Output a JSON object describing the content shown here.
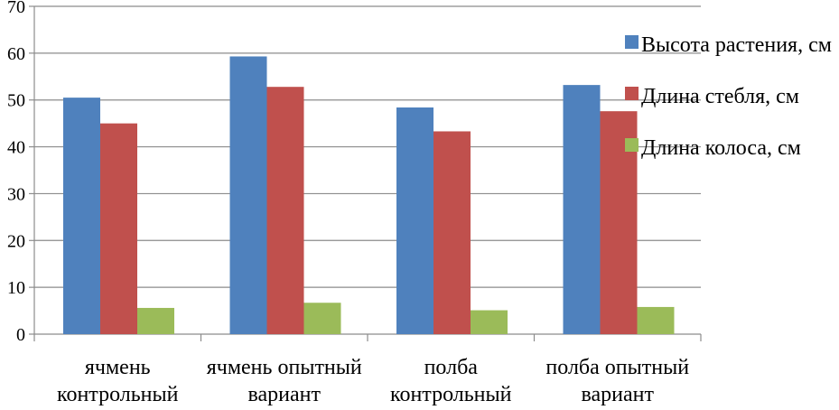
{
  "chart_data": {
    "type": "bar",
    "title": "",
    "xlabel": "",
    "ylabel": "",
    "ylim": [
      0,
      70
    ],
    "yticks": [
      0,
      10,
      20,
      30,
      40,
      50,
      60,
      70
    ],
    "grid": true,
    "legend_position": "right",
    "categories": [
      [
        "ячмень",
        "контрольный"
      ],
      [
        "ячмень опытный",
        "вариант"
      ],
      [
        "полба",
        "контрольный"
      ],
      [
        "полба опытный",
        "вариант"
      ]
    ],
    "series": [
      {
        "name": "Высота растения, см",
        "color": "#4F81BD",
        "values": [
          50.5,
          59.3,
          48.4,
          53.2
        ]
      },
      {
        "name": "Длина стебля, см",
        "color": "#C0504D",
        "values": [
          45.0,
          52.8,
          43.3,
          47.6
        ]
      },
      {
        "name": "Длина колоса, см",
        "color": "#9BBB59",
        "values": [
          5.6,
          6.7,
          5.1,
          5.8
        ]
      }
    ]
  }
}
